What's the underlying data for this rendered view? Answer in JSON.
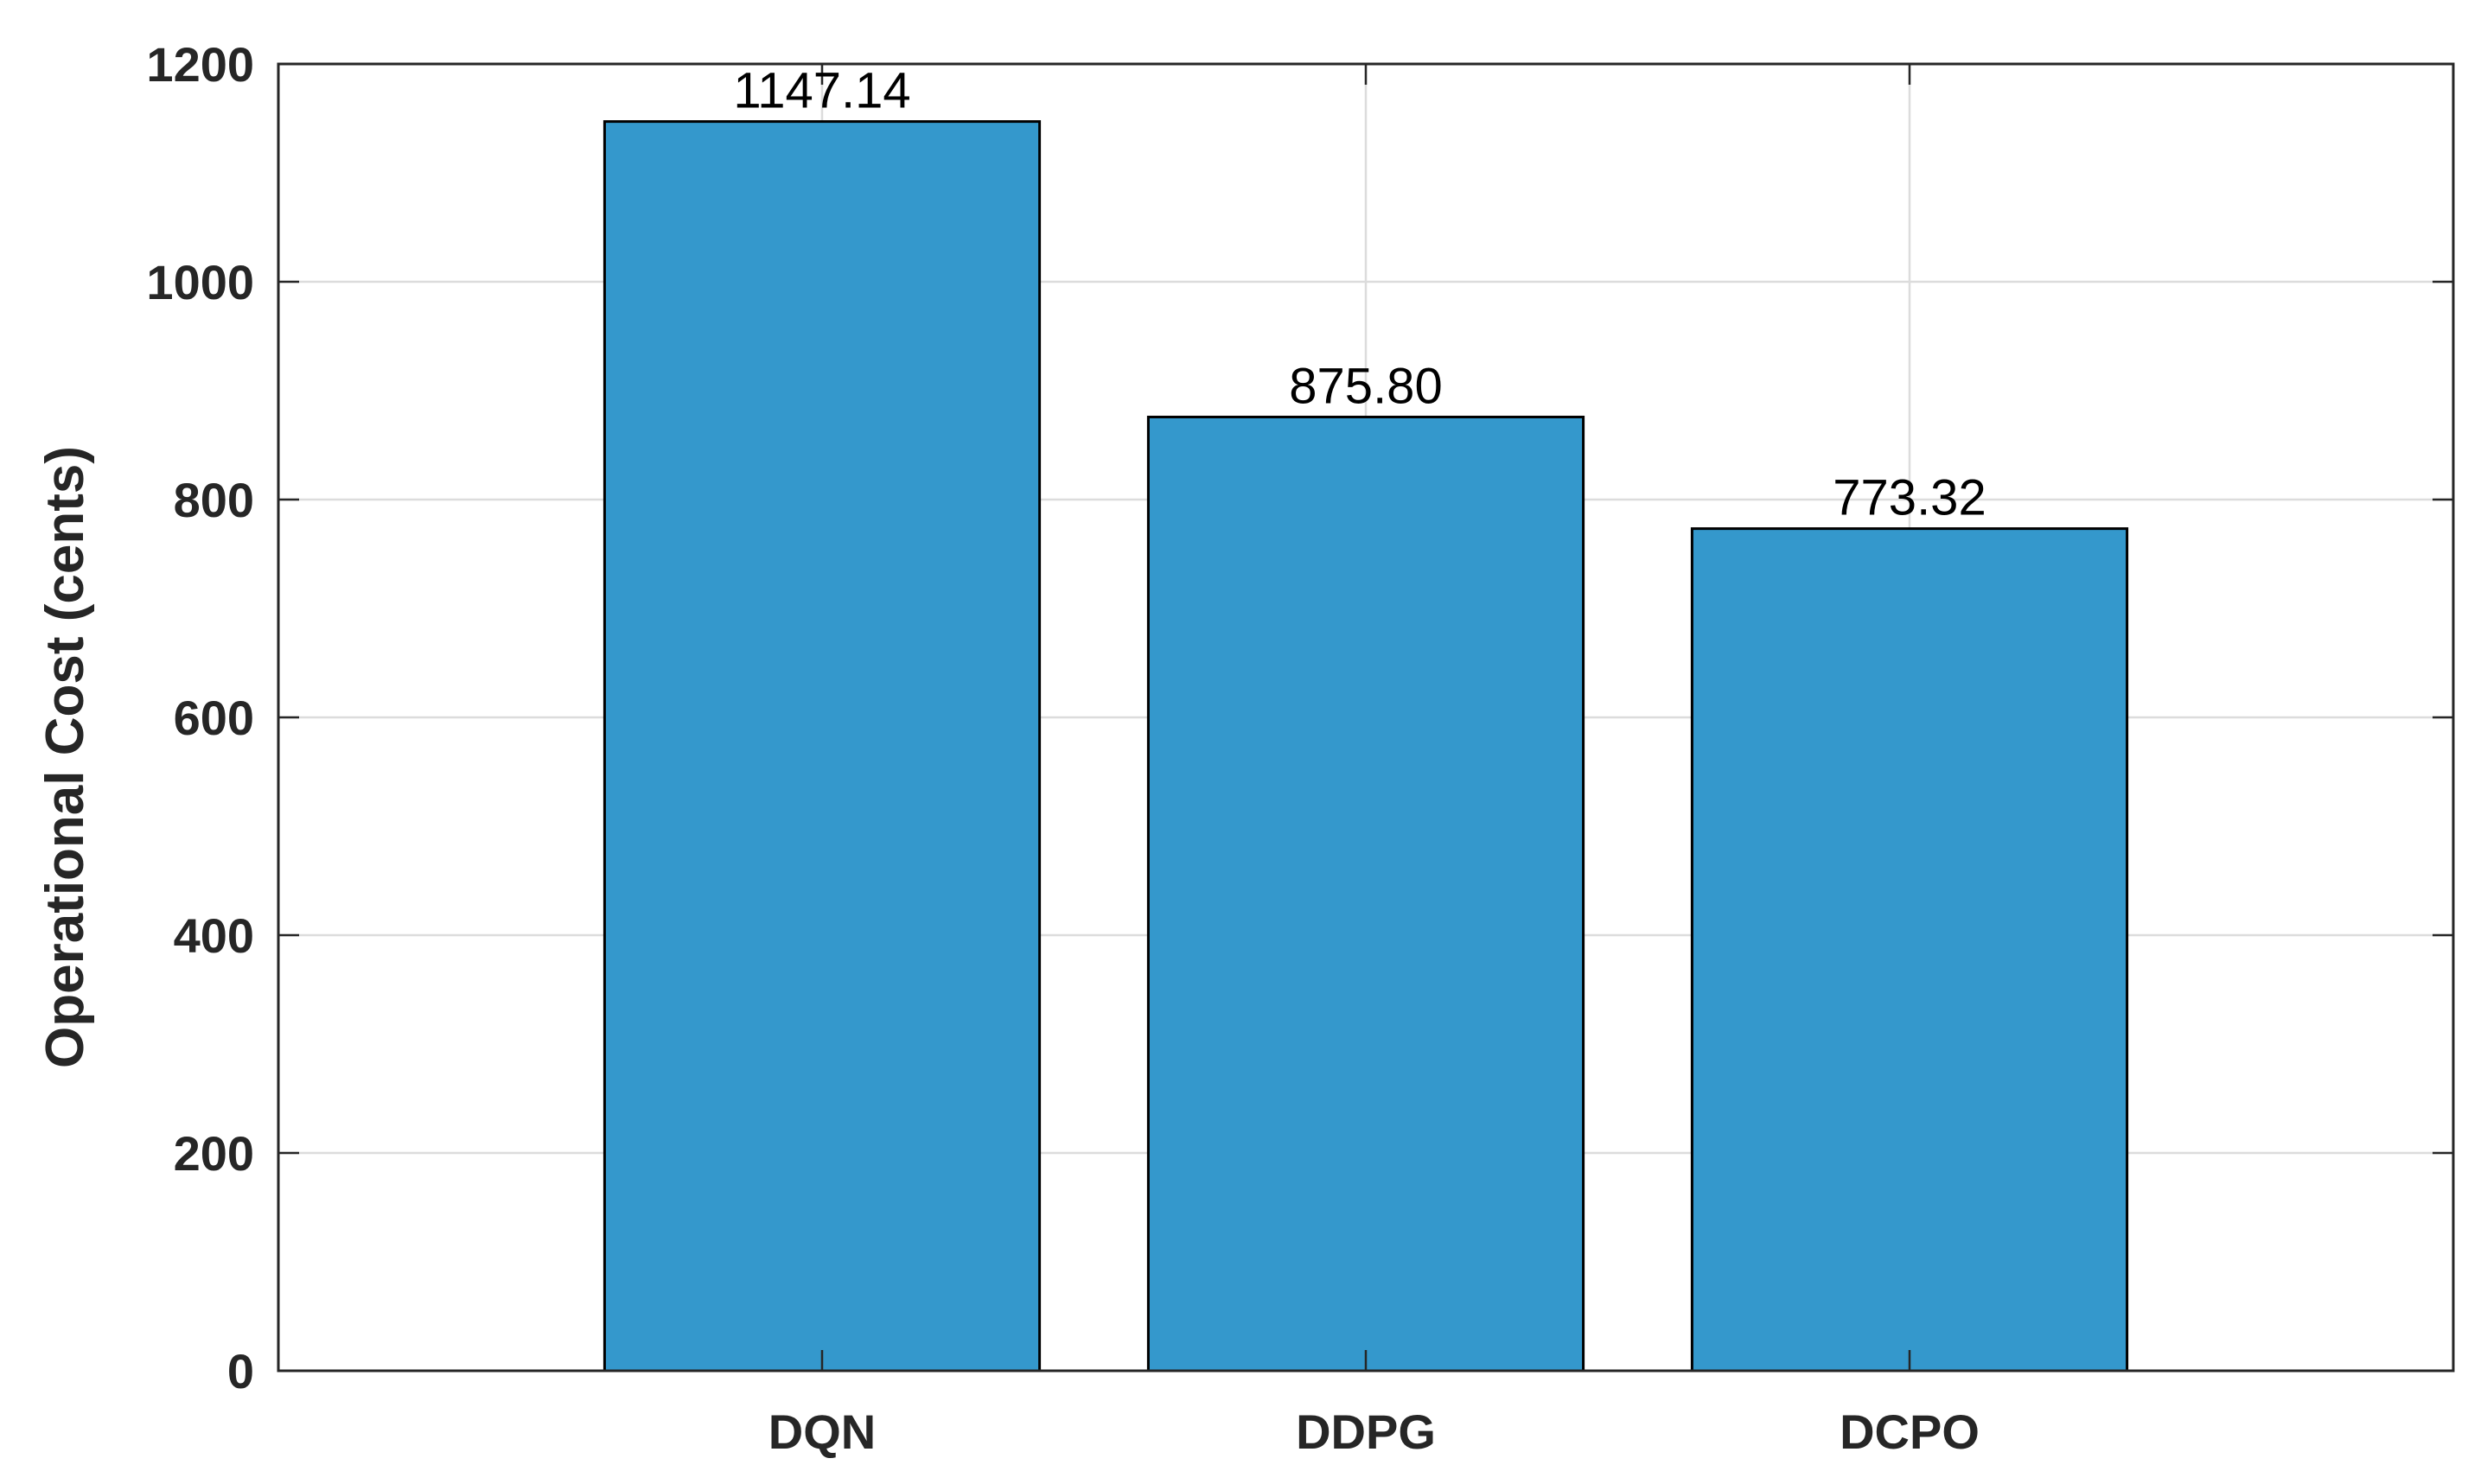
{
  "chart_data": {
    "type": "bar",
    "categories": [
      "DQN",
      "DDPG",
      "DCPO"
    ],
    "values": [
      1147.14,
      875.8,
      773.32
    ],
    "data_labels": [
      "1147.14",
      "875.80",
      "773.32"
    ],
    "title": "",
    "xlabel": "",
    "ylabel": "Operational Cost (cents)",
    "ylim": [
      0,
      1200
    ],
    "yticks": [
      0,
      200,
      400,
      600,
      800,
      1000,
      1200
    ],
    "xlim": [
      0,
      4
    ],
    "bar_width": 0.8,
    "grid": true,
    "legend": "none",
    "colors": {
      "bar": "#3498CC",
      "bar_edge": "#000000",
      "axis": "#262626",
      "grid": "#DCDCDC"
    }
  }
}
